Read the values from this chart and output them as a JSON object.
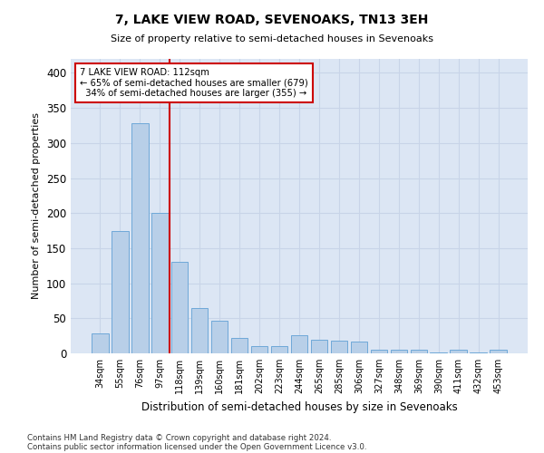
{
  "title1": "7, LAKE VIEW ROAD, SEVENOAKS, TN13 3EH",
  "title2": "Size of property relative to semi-detached houses in Sevenoaks",
  "xlabel": "Distribution of semi-detached houses by size in Sevenoaks",
  "ylabel": "Number of semi-detached properties",
  "categories": [
    "34sqm",
    "55sqm",
    "76sqm",
    "97sqm",
    "118sqm",
    "139sqm",
    "160sqm",
    "181sqm",
    "202sqm",
    "223sqm",
    "244sqm",
    "265sqm",
    "285sqm",
    "306sqm",
    "327sqm",
    "348sqm",
    "369sqm",
    "390sqm",
    "411sqm",
    "432sqm",
    "453sqm"
  ],
  "values": [
    28,
    175,
    328,
    200,
    130,
    65,
    46,
    22,
    10,
    10,
    26,
    20,
    18,
    17,
    5,
    5,
    5,
    1,
    5,
    1,
    5
  ],
  "bar_color": "#b8cfe8",
  "bar_edge_color": "#6fa8d8",
  "vline_x": 3.5,
  "property_label": "7 LAKE VIEW ROAD: 112sqm",
  "pct_smaller": 65,
  "n_smaller": 679,
  "pct_larger": 34,
  "n_larger": 355,
  "annotation_box_color": "#ffffff",
  "annotation_box_edge": "#cc0000",
  "vline_color": "#cc0000",
  "grid_color": "#c8d4e8",
  "background_color": "#dce6f4",
  "footer1": "Contains HM Land Registry data © Crown copyright and database right 2024.",
  "footer2": "Contains public sector information licensed under the Open Government Licence v3.0.",
  "ylim": [
    0,
    420
  ],
  "yticks": [
    0,
    50,
    100,
    150,
    200,
    250,
    300,
    350,
    400
  ]
}
